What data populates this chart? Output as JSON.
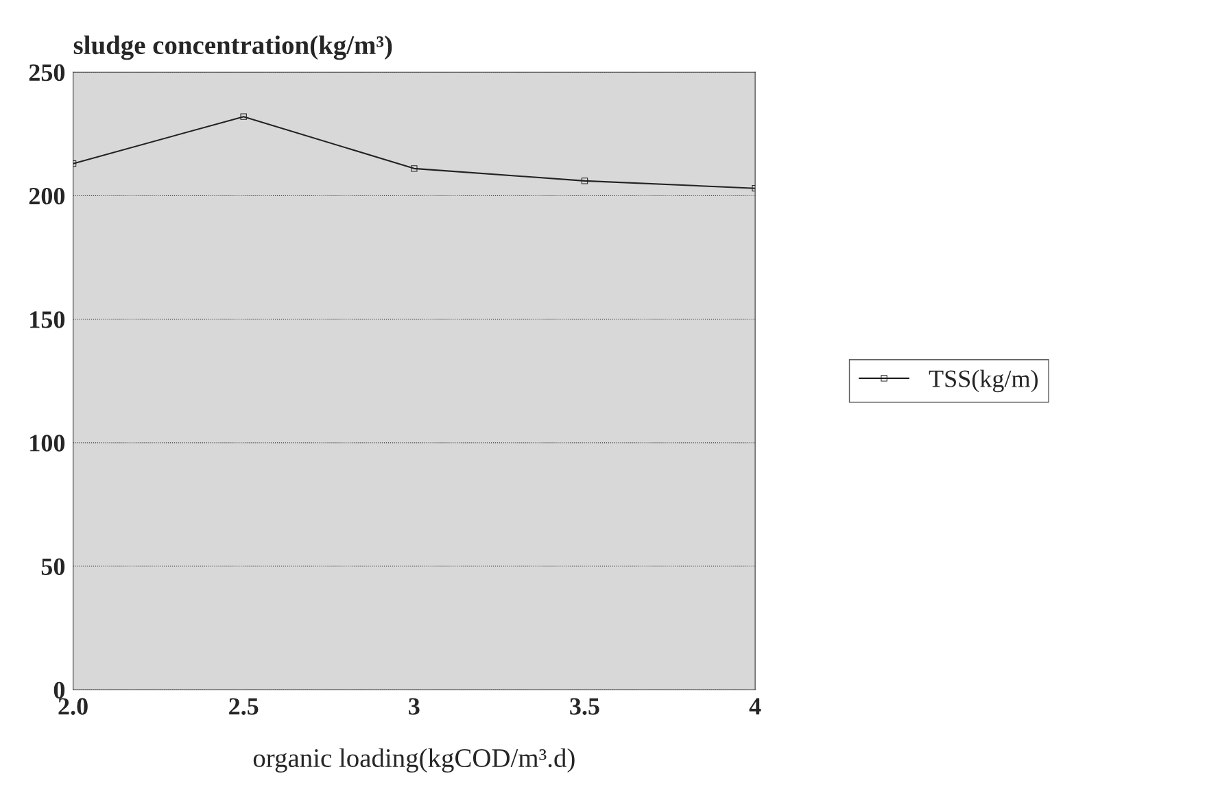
{
  "chart_data": {
    "type": "line",
    "xlabel": "organic loading(kgCOD/m³.d)",
    "ylabel": "sludge concentration(kg/m³)",
    "x": [
      2.0,
      2.5,
      3,
      3.5,
      4
    ],
    "series": [
      {
        "name": "TSS(kg/m)",
        "color": "#222222",
        "values": [
          213,
          232,
          211,
          206,
          203
        ]
      }
    ],
    "xlim": [
      2.0,
      4
    ],
    "xticks": [
      {
        "value": 2.0,
        "label": "2.0"
      },
      2.5,
      3,
      3.5,
      4
    ],
    "ylim": [
      0,
      250
    ],
    "yticks": [
      0,
      50,
      100,
      150,
      200,
      250
    ],
    "grid": "y",
    "legend": "right",
    "marker": "square",
    "line_style": "solid"
  }
}
